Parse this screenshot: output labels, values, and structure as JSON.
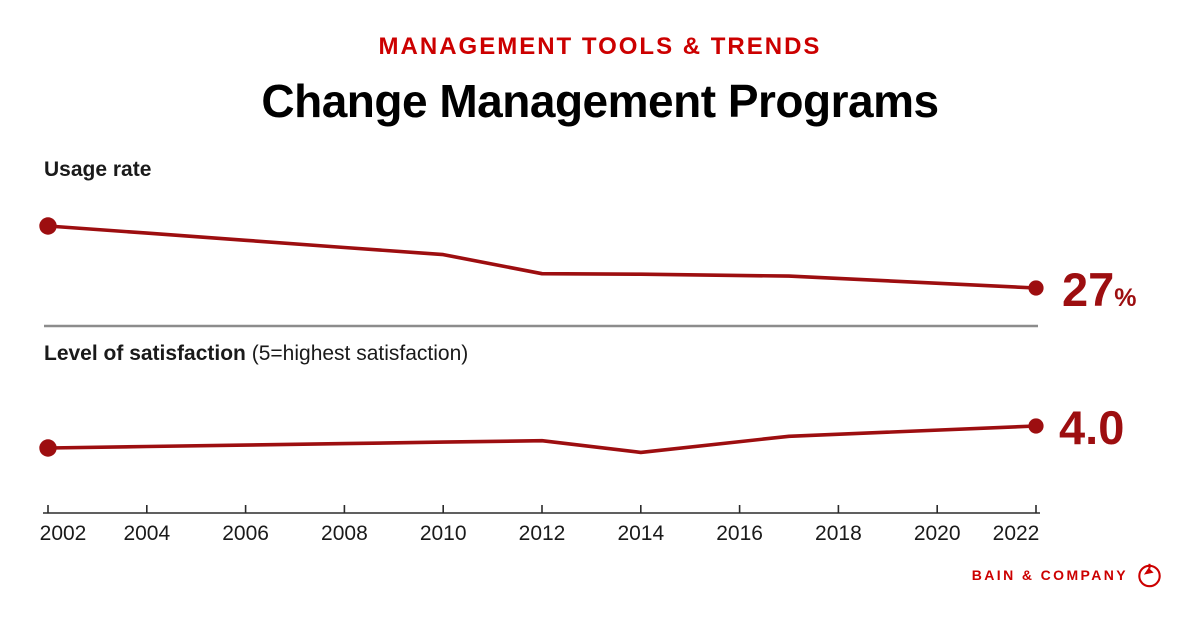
{
  "header": {
    "eyebrow": "MANAGEMENT TOOLS & TRENDS",
    "title": "Change Management Programs"
  },
  "colors": {
    "accent_bright_red": "#cc0000",
    "chart_dark_red": "#9d0e10",
    "text_black": "#1a1a1a",
    "separator_gray": "#8c8c8c",
    "axis_dark": "#2b2b2b"
  },
  "axis": {
    "tick_years": [
      "2002",
      "2004",
      "2006",
      "2008",
      "2010",
      "2012",
      "2014",
      "2016",
      "2018",
      "2020",
      "2022"
    ],
    "xlim": [
      2002,
      2022
    ]
  },
  "chart_data": [
    {
      "type": "line",
      "name": "usage",
      "title": "Usage rate",
      "subtitle": "",
      "legend_position": "none",
      "grid": false,
      "estimated": true,
      "x": [
        2002,
        2004,
        2006,
        2008,
        2010,
        2012,
        2014,
        2017,
        2022
      ],
      "values": [
        40,
        38.5,
        37,
        35.5,
        34,
        30,
        29.9,
        29.5,
        27
      ],
      "labeled_points": [
        {
          "x": 2022,
          "label": "27%"
        }
      ],
      "end_label": {
        "value": "27",
        "suffix": "%"
      }
    },
    {
      "type": "line",
      "name": "satisfaction",
      "title": "Level of satisfaction",
      "subtitle": "(5=highest satisfaction)",
      "legend_position": "none",
      "grid": false,
      "estimated": true,
      "ylim_note": "5=highest satisfaction",
      "x": [
        2002,
        2004,
        2006,
        2008,
        2010,
        2012,
        2014,
        2017,
        2022
      ],
      "values": [
        3.85,
        3.86,
        3.87,
        3.88,
        3.89,
        3.9,
        3.82,
        3.93,
        4.0
      ],
      "labeled_points": [
        {
          "x": 2022,
          "label": "4.0"
        }
      ],
      "end_label": {
        "value": "4.0",
        "suffix": ""
      }
    }
  ],
  "footer": {
    "brand": "BAIN & COMPANY",
    "logo": "bain-compass-icon"
  }
}
